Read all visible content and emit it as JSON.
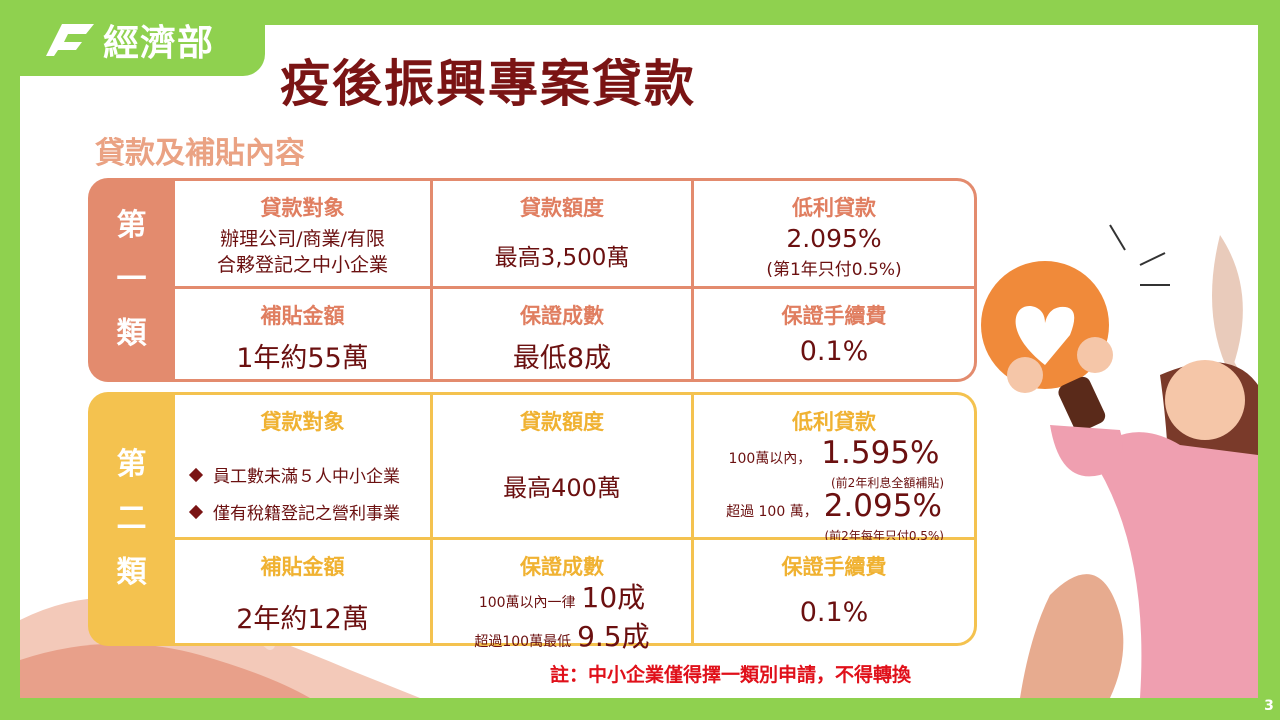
{
  "logo": "經濟部",
  "title": "疫後振興專案貸款",
  "subtitle": "貸款及補貼內容",
  "categories": [
    {
      "label": "第一類",
      "cells": [
        {
          "header": "貸款對象",
          "lines": [
            "辦理公司/商業/有限",
            "合夥登記之中小企業"
          ]
        },
        {
          "header": "貸款額度",
          "lines": [
            "最高3,500萬"
          ]
        },
        {
          "header": "低利貸款",
          "lines": [
            "2.095%",
            "(第1年只付0.5%)"
          ]
        },
        {
          "header": "補貼金額",
          "lines": [
            "1年約55萬"
          ]
        },
        {
          "header": "保證成數",
          "lines": [
            "最低8成"
          ]
        },
        {
          "header": "保證手續費",
          "lines": [
            "0.1%"
          ]
        }
      ]
    },
    {
      "label": "第二類",
      "cells": [
        {
          "header": "貸款對象",
          "bullets": [
            "員工數未滿５人中小企業",
            "僅有稅籍登記之營利事業"
          ]
        },
        {
          "header": "貸款額度",
          "lines": [
            "最高400萬"
          ]
        },
        {
          "header": "低利貸款",
          "tiers": [
            {
              "condition": "100萬以內，",
              "rate": "1.595%",
              "note": "(前2年利息全額補貼)"
            },
            {
              "condition": "超過 100 萬，",
              "rate": "2.095%",
              "note": "(前2年每年只付0.5%)"
            }
          ]
        },
        {
          "header": "補貼金額",
          "lines": [
            "2年約12萬"
          ]
        },
        {
          "header": "保證成數",
          "tiers": [
            {
              "condition": "100萬以內一律",
              "rate": "10成"
            },
            {
              "condition": "超過100萬最低",
              "rate": "9.5成"
            }
          ]
        },
        {
          "header": "保證手續費",
          "lines": [
            "0.1%"
          ]
        }
      ]
    }
  ],
  "note": "註：中小企業僅得擇一類別申請，不得轉換",
  "page_number": "3"
}
